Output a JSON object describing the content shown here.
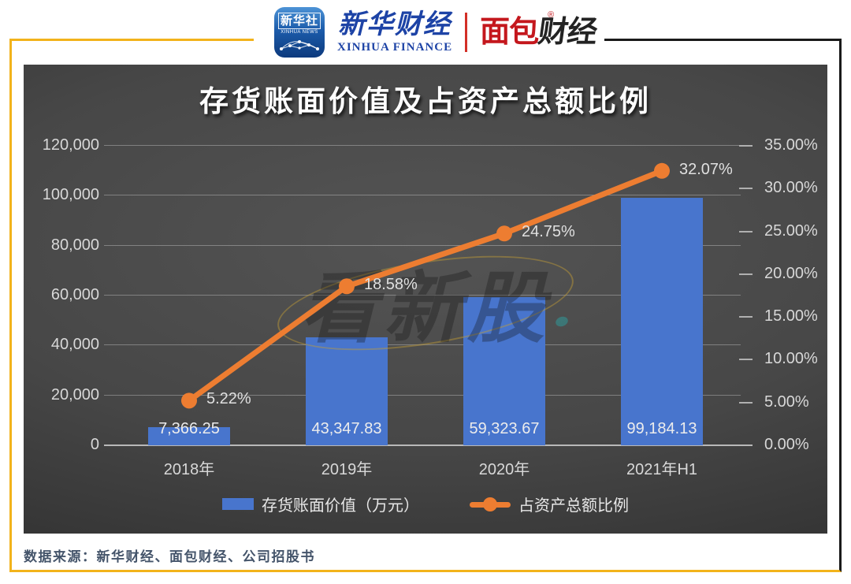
{
  "colors": {
    "frame_gold": "#F2B31B",
    "frame_dark": "#1A1A1A",
    "xinhua_blue": "#1D43A6",
    "mianbao_red": "#C4171D",
    "footer_text": "#44546A"
  },
  "header": {
    "xinhua_news_logo": {
      "cn": "新华社",
      "en": "XINHUA NEWS"
    },
    "xinhua_finance": {
      "cn": "新华财经",
      "en": "XINHUA FINANCE"
    },
    "mianbao": {
      "red_part": "面包",
      "dark_part": "财经",
      "reg_mark": "®"
    }
  },
  "chart_data": {
    "type": "bar+line combo",
    "title": "存货账面价值及占资产总额比例",
    "categories": [
      "2018年",
      "2019年",
      "2020年",
      "2021年H1"
    ],
    "series": [
      {
        "name": "存货账面价值（万元）",
        "type": "bar",
        "color": "#4875CD",
        "axis": "left",
        "values": [
          7366.25,
          43347.83,
          59323.67,
          99184.13
        ],
        "labels": [
          "7,366.25",
          "43,347.83",
          "59,323.67",
          "99,184.13"
        ]
      },
      {
        "name": "占资产总额比例",
        "type": "line",
        "color": "#ED7D31",
        "axis": "right",
        "values": [
          5.22,
          18.58,
          24.75,
          32.07
        ],
        "labels": [
          "5.22%",
          "18.58%",
          "24.75%",
          "32.07%"
        ]
      }
    ],
    "left_axis": {
      "min": 0,
      "max": 120000,
      "ticks": [
        "120,000",
        "100,000",
        "80,000",
        "60,000",
        "40,000",
        "20,000",
        "0"
      ]
    },
    "right_axis": {
      "min": 0,
      "max": 35,
      "ticks": [
        "35.00%",
        "30.00%",
        "25.00%",
        "20.00%",
        "15.00%",
        "10.00%",
        "5.00%",
        "0.00%"
      ]
    },
    "legend_position": "bottom",
    "grid": "horizontal",
    "watermark": "看新股"
  },
  "footer": {
    "source": "数据来源：新华财经、面包财经、公司招股书"
  }
}
